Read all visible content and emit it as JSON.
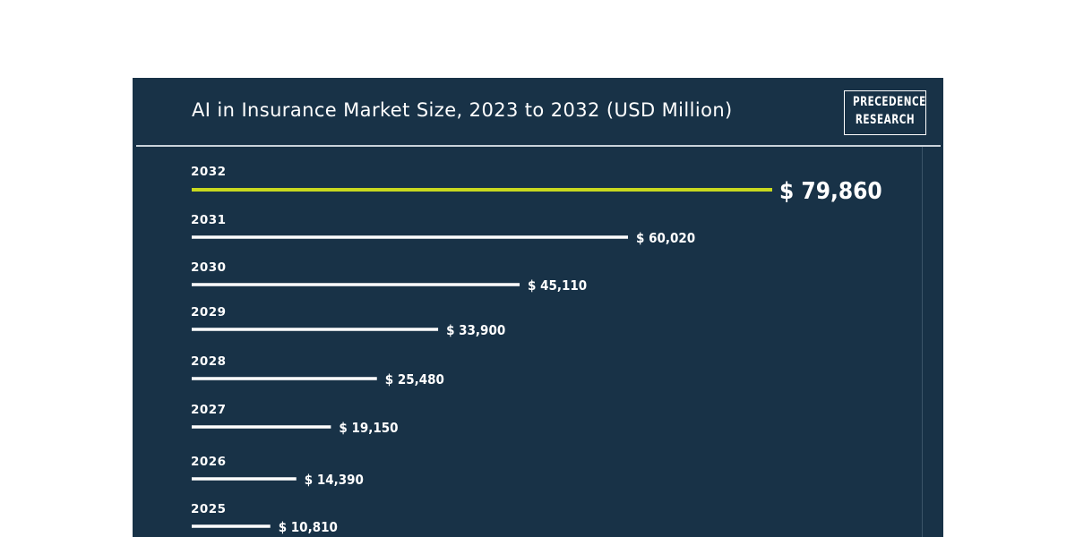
{
  "logo": {
    "line1": "PRECEDENCE",
    "line2": "RESEARCH"
  },
  "colors": {
    "background": "#183247",
    "bar": "#ffffff",
    "highlight_bar": "#c8d91f"
  },
  "chart_data": {
    "type": "bar",
    "orientation": "horizontal",
    "title": "AI in Insurance Market Size, 2023 to 2032 (USD Million)",
    "categories": [
      "2032",
      "2031",
      "2030",
      "2029",
      "2028",
      "2027",
      "2026",
      "2025"
    ],
    "values": [
      79860,
      60020,
      45110,
      33900,
      25480,
      19150,
      14390,
      10810
    ],
    "value_labels": [
      "$ 79,860",
      "$ 60,020",
      "$ 45,110",
      "$ 33,900",
      "$ 25,480",
      "$ 19,150",
      "$ 14,390",
      "$ 10,810"
    ],
    "highlight_category": "2032",
    "xlim": [
      0,
      79860
    ],
    "grid": false,
    "legend": "none"
  }
}
